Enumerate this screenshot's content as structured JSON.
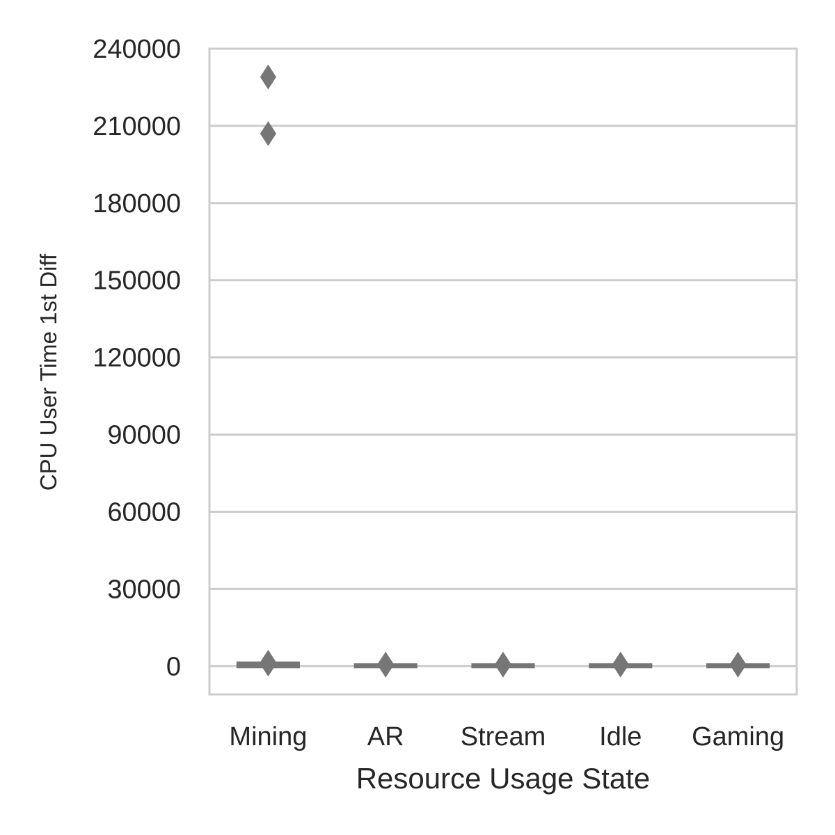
{
  "chart_data": {
    "type": "box",
    "xlabel": "Resource Usage State",
    "ylabel": "CPU User Time 1st Diff",
    "categories": [
      "Mining",
      "AR",
      "Stream",
      "Idle",
      "Gaming"
    ],
    "ylim": [
      -11000,
      240000
    ],
    "yticks": [
      0,
      30000,
      60000,
      90000,
      120000,
      150000,
      180000,
      210000,
      240000
    ],
    "grid": true,
    "series": [
      {
        "category": "Mining",
        "q1": 0,
        "median": 300,
        "q3": 1000,
        "whisker_low": 0,
        "whisker_high": 2000,
        "outliers": [
          229000,
          207000,
          1500,
          800
        ]
      },
      {
        "category": "AR",
        "q1": 0,
        "median": 100,
        "q3": 300,
        "whisker_low": 0,
        "whisker_high": 600,
        "outliers": [
          800,
          400
        ]
      },
      {
        "category": "Stream",
        "q1": 0,
        "median": 100,
        "q3": 300,
        "whisker_low": 0,
        "whisker_high": 600,
        "outliers": [
          800,
          400
        ]
      },
      {
        "category": "Idle",
        "q1": 0,
        "median": 100,
        "q3": 300,
        "whisker_low": 0,
        "whisker_high": 600,
        "outliers": [
          800,
          400
        ]
      },
      {
        "category": "Gaming",
        "q1": 0,
        "median": 100,
        "q3": 300,
        "whisker_low": 0,
        "whisker_high": 600,
        "outliers": [
          800,
          400
        ]
      }
    ],
    "colors": {
      "box": "#767676",
      "grid": "#cccccc",
      "axis_text": "#262626"
    }
  }
}
